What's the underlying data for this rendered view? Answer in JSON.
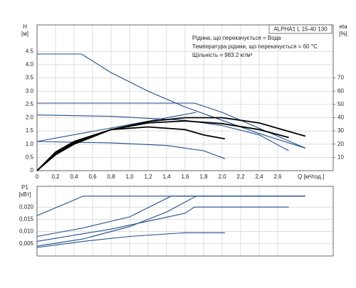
{
  "chart_data": [
    {
      "type": "line",
      "title": "ALPHA1 L 15-40 130",
      "annotations": [
        "Рідина, що перекачується = Вода",
        "Температура рідини, що перекачується = 60 °C",
        "Щільність = 983.2 кг/м³"
      ],
      "ylabel": "H",
      "ylabel_unit": "[м]",
      "y2label": "eta",
      "y2label_unit": "[%]",
      "xlabel": "Q [м³/год.]",
      "xlim": [
        0,
        3.2
      ],
      "xticks": [
        0,
        {
          "value": 0.2,
          "label": "0,2"
        },
        {
          "value": 0.4,
          "label": "0,4"
        },
        {
          "value": 0.6,
          "label": "0,6"
        },
        {
          "value": 0.8,
          "label": "0,8"
        },
        {
          "value": 1.0,
          "label": "1,0"
        },
        {
          "value": 1.2,
          "label": "1,2"
        },
        {
          "value": 1.4,
          "label": "1,4"
        },
        {
          "value": 1.6,
          "label": "1,6"
        },
        {
          "value": 1.8,
          "label": "1,8"
        },
        {
          "value": 2.0,
          "label": "2,0"
        },
        {
          "value": 2.2,
          "label": "2,2"
        },
        {
          "value": 2.4,
          "label": "2,4"
        },
        {
          "value": 2.6,
          "label": "2,6"
        }
      ],
      "ylim": [
        0,
        5.5
      ],
      "yticks": [
        0,
        0.5,
        {
          "value": 1.0,
          "label": "1.0"
        },
        1.5,
        {
          "value": 2.0,
          "label": "2.0"
        },
        2.5,
        {
          "value": 3.0,
          "label": "3.0"
        },
        3.5,
        {
          "value": 4.0,
          "label": "4.0"
        },
        4.5
      ],
      "y2lim": [
        0,
        110
      ],
      "y2ticks": [
        10,
        20,
        30,
        40,
        50,
        60,
        70
      ],
      "grid": true,
      "series": [
        {
          "color": "#1f4e8c",
          "x": [
            0,
            0.48,
            0.8,
            1.2,
            1.6,
            2.0,
            2.4,
            2.9
          ],
          "values": [
            4.4,
            4.4,
            3.7,
            3.0,
            2.4,
            1.9,
            1.4,
            0.85
          ]
        },
        {
          "color": "#1f4e8c",
          "x": [
            0,
            1.7,
            2.0,
            2.4,
            2.9
          ],
          "values": [
            2.55,
            2.55,
            2.2,
            1.6,
            0.85
          ]
        },
        {
          "color": "#1f4e8c",
          "x": [
            0,
            0.8,
            1.6,
            2.0,
            2.4,
            2.72
          ],
          "values": [
            2.1,
            2.05,
            1.9,
            1.7,
            1.35,
            0.75
          ]
        },
        {
          "color": "#1f4e8c",
          "x": [
            0,
            0.8,
            1.4,
            1.8,
            2.03
          ],
          "values": [
            1.1,
            1.05,
            0.95,
            0.75,
            0.45
          ]
        },
        {
          "color": "#1f4e8c",
          "x": [
            0,
            1.72
          ],
          "values": [
            1.1,
            2.2
          ]
        },
        {
          "color": "#000000",
          "axis": "y2",
          "x": [
            0,
            0.2,
            0.4,
            0.8,
            1.2,
            1.6,
            2.0,
            2.4,
            2.9
          ],
          "values": [
            0,
            12,
            20,
            31,
            37,
            40,
            40,
            36,
            26
          ]
        },
        {
          "color": "#000000",
          "axis": "y2",
          "x": [
            0,
            0.2,
            0.4,
            0.8,
            1.2,
            1.6,
            2.0,
            2.4,
            2.72
          ],
          "values": [
            0,
            13,
            21,
            31,
            36,
            37.5,
            35.5,
            31,
            25
          ]
        },
        {
          "color": "#000000",
          "axis": "y2",
          "x": [
            0,
            0.2,
            0.4,
            0.8,
            1.2,
            1.6,
            1.8,
            2.03
          ],
          "values": [
            0,
            14,
            22,
            31,
            33,
            31,
            27,
            24
          ]
        }
      ]
    },
    {
      "type": "line",
      "ylabel": "P1",
      "ylabel_unit": "[кВт]",
      "xlim": [
        0,
        3.2
      ],
      "xticks": [
        0,
        0.2,
        0.4,
        0.6,
        0.8,
        1.0,
        1.2,
        1.4,
        1.6,
        1.8,
        2.0,
        2.2,
        2.4,
        2.6
      ],
      "ylim": [
        0,
        0.0285
      ],
      "yticks": [
        {
          "value": 0.005,
          "label": "0,005"
        },
        {
          "value": 0.01,
          "label": "0,010"
        },
        {
          "value": 0.015,
          "label": "0,015"
        },
        {
          "value": 0.02,
          "label": "0,020"
        }
      ],
      "grid": true,
      "series": [
        {
          "color": "#1f4e8c",
          "x": [
            0,
            0.5,
            2.9
          ],
          "values": [
            0.0165,
            0.0245,
            0.0245
          ]
        },
        {
          "color": "#1f4e8c",
          "x": [
            0,
            0.5,
            1.0,
            1.45,
            2.9
          ],
          "values": [
            0.008,
            0.0115,
            0.016,
            0.0245,
            0.0245
          ]
        },
        {
          "color": "#1f4e8c",
          "x": [
            0,
            0.5,
            1.0,
            1.4,
            1.72,
            2.9
          ],
          "values": [
            0.004,
            0.007,
            0.012,
            0.018,
            0.0245,
            0.0245
          ]
        },
        {
          "color": "#1f4e8c",
          "x": [
            0,
            0.8,
            1.6,
            1.7,
            2.72
          ],
          "values": [
            0.006,
            0.011,
            0.0175,
            0.02,
            0.02
          ]
        },
        {
          "color": "#1f4e8c",
          "x": [
            0,
            0.5,
            1.0,
            1.6,
            2.03
          ],
          "values": [
            0.0035,
            0.006,
            0.008,
            0.0095,
            0.0095
          ]
        }
      ]
    }
  ]
}
